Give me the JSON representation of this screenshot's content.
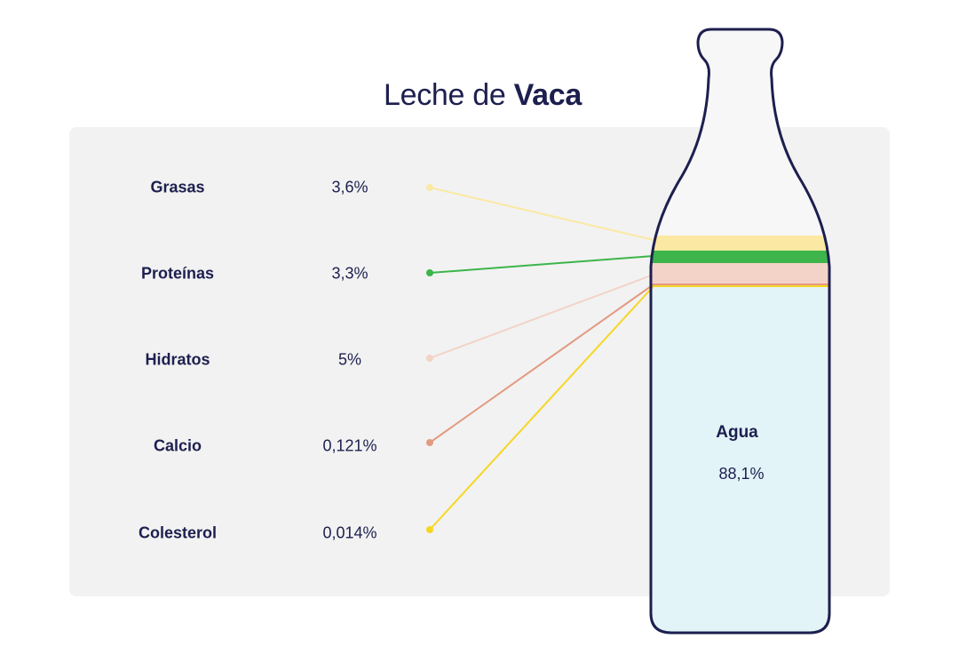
{
  "title": {
    "prefix": "Leche de ",
    "emphasis": "Vaca"
  },
  "components": [
    {
      "name": "Grasas",
      "value": "3,6%",
      "color": "#fbe9a3"
    },
    {
      "name": "Proteínas",
      "value": "3,3%",
      "color": "#3db54a"
    },
    {
      "name": "Hidratos",
      "value": "5%",
      "color": "#f3d3c7"
    },
    {
      "name": "Calcio",
      "value": "0,121%",
      "color": "#e39a82"
    },
    {
      "name": "Colesterol",
      "value": "0,014%",
      "color": "#f7d623"
    }
  ],
  "water": {
    "name": "Agua",
    "value": "88,1%",
    "color": "#e3f4f8"
  },
  "colors": {
    "ink": "#1d1f4f",
    "panel": "#f2f2f2",
    "bottle_outline": "#1d1f4f"
  }
}
